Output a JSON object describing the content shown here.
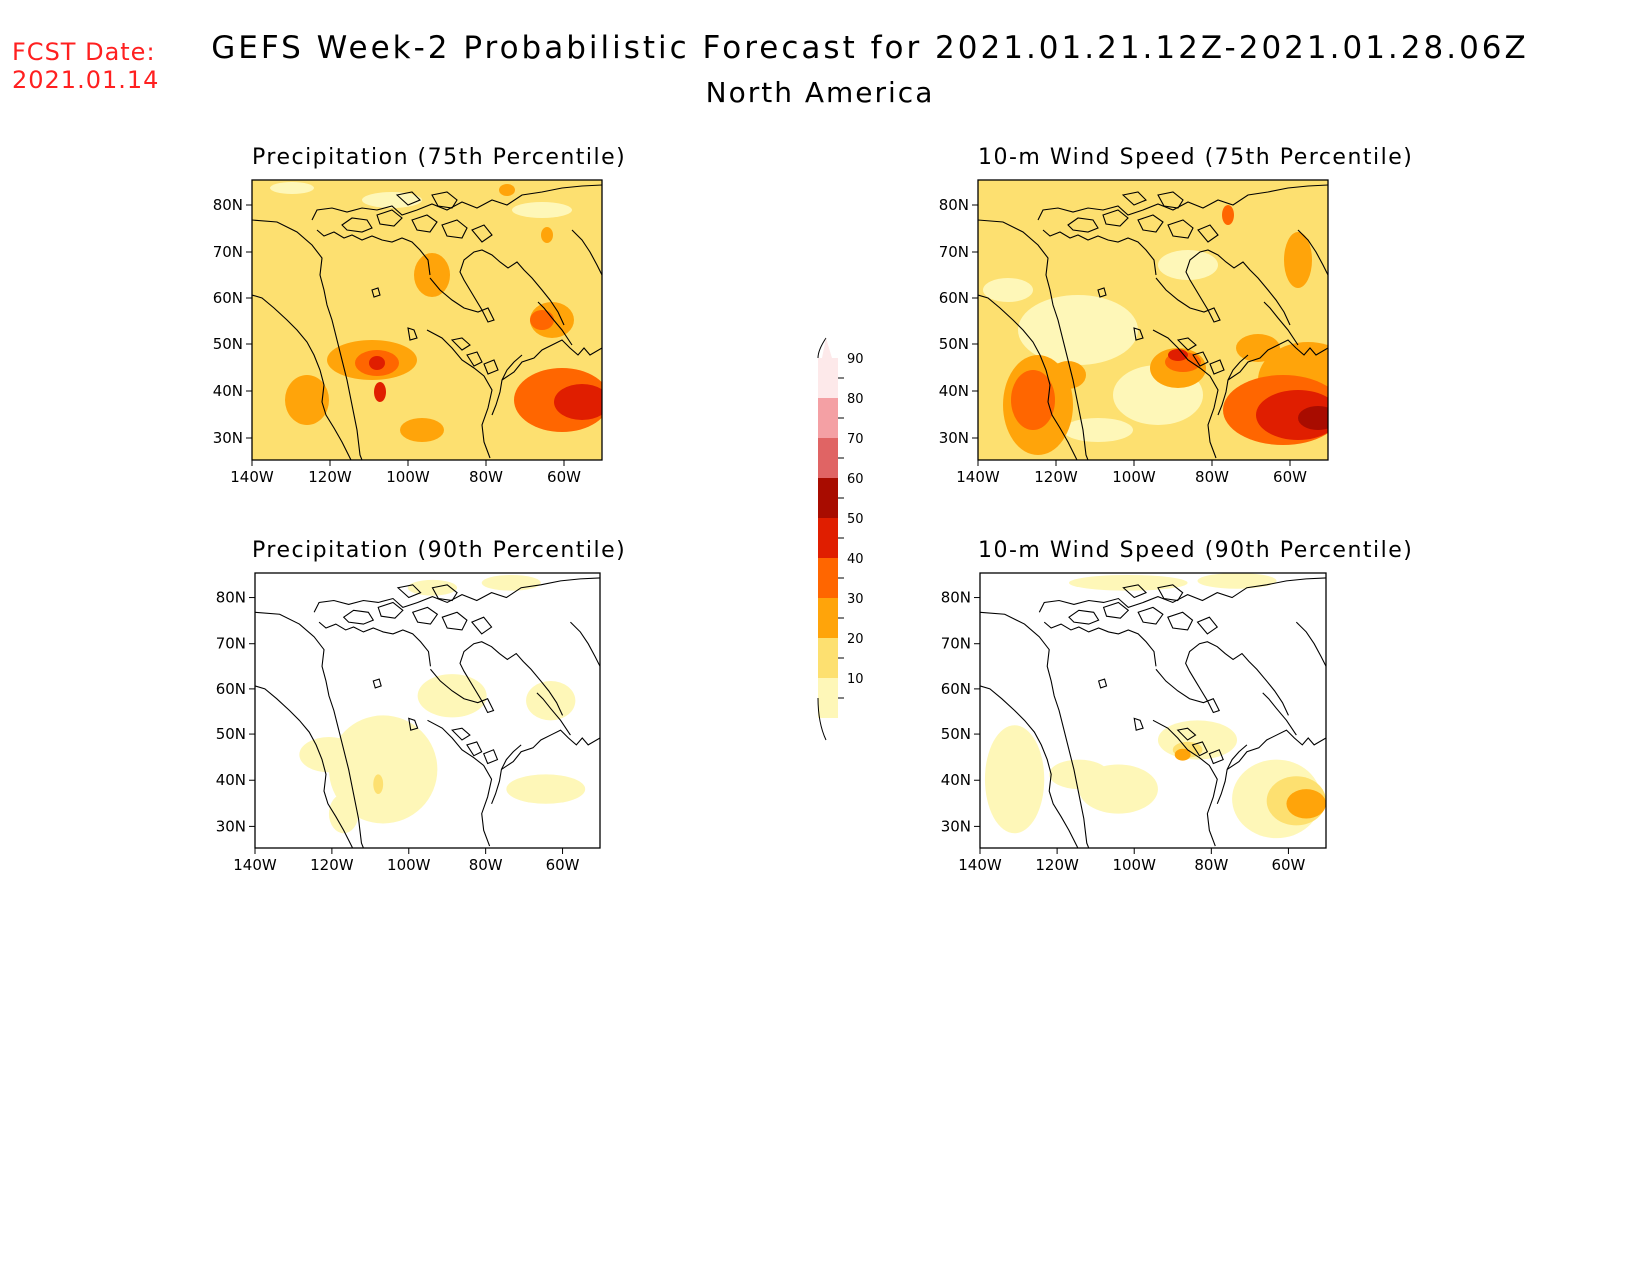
{
  "header": {
    "fcst_label": "FCST Date:",
    "fcst_date": "2021.01.14",
    "title": "GEFS Week-2 Probabilistic Forecast for 2021.01.21.12Z-2021.01.28.06Z",
    "subtitle": "North America"
  },
  "panels": [
    {
      "title": "Precipitation (75th Percentile)"
    },
    {
      "title": "10-m Wind Speed (75th Percentile)"
    },
    {
      "title": "Precipitation (90th Percentile)"
    },
    {
      "title": "10-m Wind Speed (90th Percentile)"
    }
  ],
  "axes": {
    "lon_ticks": [
      "140W",
      "120W",
      "100W",
      "80W",
      "60W"
    ],
    "lat_ticks": [
      "80N",
      "70N",
      "60N",
      "50N",
      "40N",
      "30N"
    ]
  },
  "colorbar": {
    "levels": [
      "90",
      "80",
      "70",
      "60",
      "50",
      "40",
      "30",
      "20",
      "10"
    ],
    "colors": [
      "#fde9ea",
      "#f4a0a4",
      "#e06464",
      "#a80c00",
      "#e01e00",
      "#ff6600",
      "#ffa40a",
      "#fde070",
      "#fef7b8"
    ]
  }
}
